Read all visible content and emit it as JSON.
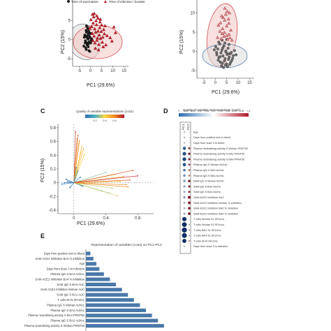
{
  "panels": {
    "a": {
      "legend": [
        "Time of vaccination",
        "Time of infection / booster"
      ],
      "xlabel": "PC1 (29.6%)",
      "ylabel": "PC2 (15%)",
      "xticks": [
        "-5",
        "0",
        "5",
        "10",
        "15"
      ],
      "yticks": [
        "5",
        "0",
        "-5"
      ]
    },
    "b": {
      "xlabel": "PC1 (29.6%)",
      "ylabel": "PC2 (15%)",
      "xticks": [
        "-5",
        "0",
        "5",
        "10",
        "15"
      ],
      "yticks": [
        "10",
        "5",
        "0",
        "-5"
      ]
    },
    "c": {
      "letter": "C",
      "legend_title": "Quality of variable representations (cos2)",
      "legend_ticks": [
        "0.2",
        "0.4",
        "0.6"
      ],
      "xlabel": "PC1 (29.6%)",
      "ylabel": "PC2 (15%)",
      "xticks": [
        "0",
        "0.4",
        "0.8"
      ],
      "yticks": [
        "0.8",
        "0.6",
        "0.4",
        "0.2",
        "0",
        "-0.2",
        "-0.4"
      ]
    },
    "d": {
      "letter": "D",
      "legend_title": "Quality of variable representations (cos2)",
      "legend_ticks": [
        "0",
        "0.04",
        "0.08",
        "0.12",
        "0.16",
        "0.2",
        "0.24",
        "0.28",
        "0.32",
        "0.36",
        "0.4"
      ],
      "columns": [
        "PC1",
        "PC2"
      ],
      "rows": [
        "Age",
        "Days from positive test to bleed",
        "Days from dose 3 to bleed",
        "Plasma neutralising activity S Wuhan PRNT50",
        "Plasma neutralising activity S BA2 PRNT50",
        "Plasma neutralising activity S BA4 PRNT50",
        "Plasma IgG S Wuhan AU/mL",
        "Plasma IgG S BA2 AU/mL",
        "Plasma IgG S BA4 AU/mL",
        "SAM IgG S Wuhan AU/mL",
        "SAM IgG S BA2 AU/mL",
        "SAM IgG S BA4 AU/mL",
        "SAM ACE2 Inhibition AUC",
        "SAM ACE2 Inhibition Wuhan % inhibition",
        "SAM ACE2 Inhibition BA2 % inhibition",
        "SAM ACE2 Inhibition BA4 % inhibition",
        "T cells Wuhan S1 SFU/mL",
        "T cells Wuhan S2 SFU/mL",
        "T cells BA1 S1 SFU/mL",
        "T cells BA4 S1 SFU/mL",
        "T cells M+N SFU/mL",
        "Days from dose 3 to infection"
      ]
    },
    "e": {
      "letter": "E",
      "title": "Representation of variables (cos2) on PC1-PC2"
    }
  },
  "colors": {
    "vacc_fill": "#1f1f1f",
    "inf_fill": "#cc1f2a",
    "ellipse_grey": "#dcdcdc",
    "ellipse_red": "#f2c6c4",
    "bar": "#4a78a8",
    "low": "#2c6fb5",
    "mid": "#ffd640",
    "high": "#b0172c"
  },
  "chart_data": [
    {
      "panel": "A",
      "type": "scatter",
      "title": "",
      "xlabel": "PC1 (29.6%)",
      "ylabel": "PC2 (15%)",
      "xlim": [
        -8,
        17
      ],
      "ylim": [
        -7,
        10
      ],
      "series": [
        {
          "name": "Time of vaccination",
          "x": [
            -2.6,
            -2.1,
            -1.8,
            -1.4,
            -0.9,
            -0.5,
            -2.3,
            -1.7,
            -1.1,
            -0.6,
            -0.2,
            0.3,
            -2.8,
            -2.0,
            -1.5,
            -1.0,
            -0.4,
            0.1,
            -1.9,
            -1.2,
            -0.7,
            -2.4,
            -1.6,
            -0.8,
            0.5,
            -3.0,
            -2.2,
            -1.3,
            -0.3,
            0.2,
            -1.0,
            -1.8
          ],
          "y": [
            1.2,
            0.8,
            1.9,
            0.4,
            1.5,
            0.9,
            -0.3,
            -0.8,
            0.1,
            -0.6,
            0.5,
            -0.2,
            0.6,
            2.4,
            -1.4,
            -1.9,
            1.7,
            -0.9,
            -2.6,
            2.8,
            -2.9,
            -0.9,
            1.0,
            2.2,
            0.2,
            -1.7,
            -2.1,
            3.2,
            -3.1,
            1.6,
            -1.2,
            3.6
          ]
        },
        {
          "name": "Time of infection / booster",
          "x": [
            0.5,
            1.2,
            1.9,
            2.7,
            3.4,
            4.1,
            0.8,
            1.6,
            2.3,
            3.1,
            3.9,
            4.8,
            5.5,
            6.2,
            1.1,
            2.0,
            2.9,
            3.7,
            4.5,
            5.3,
            6.9,
            0.2,
            1.4,
            2.5,
            3.3,
            4.2,
            5.0,
            5.9,
            7.4,
            8.8,
            10.5,
            1.7,
            2.8,
            4.4,
            6.5,
            -0.3,
            0.9,
            2.2,
            3.6,
            5.7,
            9.6,
            11.2
          ],
          "y": [
            3.4,
            4.3,
            2.8,
            3.9,
            2.2,
            3.1,
            1.6,
            0.9,
            1.9,
            0.4,
            1.2,
            2.1,
            0.6,
            1.5,
            -0.3,
            -0.9,
            -0.2,
            -1.3,
            0.3,
            -0.7,
            -1.4,
            5.2,
            5.9,
            4.9,
            5.6,
            4.6,
            3.8,
            2.6,
            1.0,
            0.5,
            3.3,
            6.8,
            6.2,
            5.3,
            3.6,
            2.9,
            6.6,
            -2.3,
            -2.7,
            -1.9,
            -0.4,
            1.8
          ]
        }
      ]
    },
    {
      "panel": "B",
      "type": "scatter",
      "title": "",
      "xlabel": "PC1 (29.6%)",
      "ylabel": "PC2 (15%)",
      "xlim": [
        -8,
        17
      ],
      "ylim": [
        -7,
        13
      ],
      "series": [
        {
          "x": [
            0.2,
            1.1,
            2.0,
            2.9,
            3.8,
            4.7,
            5.6,
            6.5,
            0.7,
            1.6,
            2.5,
            3.4,
            4.3,
            5.2,
            6.1,
            7.0,
            7.9,
            1.3,
            2.2,
            3.1,
            4.0,
            4.9,
            5.8,
            6.7,
            7.6,
            2.7,
            3.6,
            4.5,
            5.4,
            6.3,
            -0.4,
            0.6,
            1.5,
            3.0,
            4.2,
            5.0,
            6.0,
            8.4,
            9.1,
            2.1,
            3.3,
            4.6,
            5.7,
            7.2
          ],
          "y": [
            1.2,
            0.6,
            1.9,
            0.3,
            1.4,
            -0.2,
            0.8,
            -0.6,
            -0.9,
            -1.6,
            -0.4,
            -1.2,
            -1.9,
            -0.8,
            -1.5,
            -0.3,
            -1.1,
            -2.3,
            -2.8,
            -3.1,
            -2.5,
            -3.3,
            -2.1,
            -2.9,
            -1.8,
            -3.8,
            -4.2,
            -3.6,
            -4.0,
            -3.4,
            0.4,
            -0.3,
            2.4,
            2.9,
            2.2,
            3.1,
            1.8,
            0.2,
            -0.9,
            -1.4,
            0.9,
            0.1,
            -0.7,
            -2.4
          ]
        },
        {
          "x": [
            1.4,
            2.3,
            3.2,
            4.1,
            5.0,
            5.9,
            6.8,
            2.0,
            3.0,
            4.0,
            5.0,
            6.0,
            1.0,
            2.6,
            3.8,
            5.4,
            6.4,
            7.3,
            3.4,
            4.6,
            5.8,
            4.2,
            5.2,
            2.8,
            6.2
          ],
          "y": [
            6.8,
            7.4,
            5.9,
            8.1,
            6.6,
            7.3,
            5.5,
            5.2,
            4.6,
            4.9,
            4.1,
            4.4,
            3.6,
            3.3,
            3.9,
            3.1,
            3.5,
            2.9,
            8.8,
            9.6,
            8.4,
            11.2,
            10.4,
            9.2,
            10.0
          ]
        }
      ]
    },
    {
      "panel": "C",
      "type": "scatter",
      "title": "",
      "xlabel": "PC1 (29.6%)",
      "ylabel": "PC2 (15%)",
      "xlim": [
        -0.2,
        1.0
      ],
      "ylim": [
        -0.45,
        0.85
      ],
      "series": [
        {
          "name": "loadings",
          "x": [
            0.02,
            0.05,
            0.04,
            0.07,
            0.06,
            0.1,
            0.12,
            0.09,
            0.13,
            0.05,
            0.03,
            0.08,
            -0.08,
            -0.12,
            -0.15,
            -0.1,
            -0.05,
            0.11,
            0.4,
            0.52,
            0.62,
            0.7,
            0.58,
            0.66,
            0.48,
            0.35,
            0.74,
            0.8,
            0.44,
            0.55,
            0.68
          ],
          "y": [
            0.74,
            0.69,
            0.64,
            0.61,
            0.57,
            0.53,
            0.49,
            0.45,
            0.41,
            0.17,
            0.22,
            0.08,
            0.02,
            0.0,
            -0.02,
            0.05,
            -0.07,
            -0.05,
            0.15,
            0.12,
            0.09,
            0.04,
            0.02,
            -0.03,
            -0.08,
            -0.12,
            0.18,
            0.1,
            -0.15,
            -0.19,
            -0.06
          ],
          "cos2": [
            0.6,
            0.55,
            0.52,
            0.5,
            0.45,
            0.4,
            0.42,
            0.38,
            0.36,
            0.15,
            0.12,
            0.1,
            0.05,
            0.06,
            0.07,
            0.05,
            0.04,
            0.05,
            0.25,
            0.35,
            0.45,
            0.55,
            0.4,
            0.48,
            0.3,
            0.2,
            0.58,
            0.62,
            0.22,
            0.32,
            0.5
          ]
        }
      ]
    },
    {
      "panel": "D",
      "type": "heatmap",
      "title": "",
      "columns": [
        "PC1",
        "PC2"
      ],
      "rows": [
        "Age",
        "Days from positive test to bleed",
        "Days from dose 3 to bleed",
        "Plasma neutralising activity S Wuhan PRNT50",
        "Plasma neutralising activity S BA2 PRNT50",
        "Plasma neutralising activity S BA4 PRNT50",
        "Plasma IgG S Wuhan AU/mL",
        "Plasma IgG S BA2 AU/mL",
        "Plasma IgG S BA4 AU/mL",
        "SAM IgG S Wuhan AU/mL",
        "SAM IgG S BA2 AU/mL",
        "SAM IgG S BA4 AU/mL",
        "SAM ACE2 Inhibition AUC",
        "SAM ACE2 Inhibition Wuhan % inhibition",
        "SAM ACE2 Inhibition BA2 % inhibition",
        "SAM ACE2 Inhibition BA4 % inhibition",
        "T cells Wuhan S1 SFU/mL",
        "T cells Wuhan S2 SFU/mL",
        "T cells BA1 S1 SFU/mL",
        "T cells BA4 S1 SFU/mL",
        "T cells M+N SFU/mL",
        "Days from dose 3 to infection"
      ],
      "values": [
        [
          0.01,
          0.0
        ],
        [
          0.02,
          0.0
        ],
        [
          0.01,
          0.0
        ],
        [
          0.18,
          0.08
        ],
        [
          0.22,
          0.1
        ],
        [
          0.24,
          0.09
        ],
        [
          0.2,
          0.07
        ],
        [
          0.12,
          0.05
        ],
        [
          0.1,
          0.04
        ],
        [
          0.09,
          0.11
        ],
        [
          0.07,
          0.09
        ],
        [
          0.06,
          0.08
        ],
        [
          0.08,
          0.16
        ],
        [
          0.05,
          0.14
        ],
        [
          0.04,
          0.12
        ],
        [
          0.06,
          0.13
        ],
        [
          0.3,
          0.0
        ],
        [
          0.34,
          0.01
        ],
        [
          0.38,
          0.02
        ],
        [
          0.36,
          0.01
        ],
        [
          0.28,
          0.02
        ],
        [
          0.01,
          0.0
        ]
      ],
      "value_range": [
        0,
        0.4
      ]
    },
    {
      "panel": "E",
      "type": "bar",
      "title": "Representation of variables (cos2) on PC1-PC2",
      "xlabel": "",
      "ylabel": "",
      "categories": [
        "Days from positive test to bleed",
        "SAM ACE2 Inhibition BA2 % inhibition",
        "Age",
        "Days from dose 3 to infection",
        "Plasma IgG S BA4 AU/mL",
        "SAM ACE2 Inhibition BA4 % inhibition",
        "SAM IgG S BA4 AUC",
        "SAM ACE2 Inhibition Wuhan AUC",
        "SAM IgG S BA1 AUC",
        "T cells M+N SFU/mL",
        "Plasma IgG S Wuhan AU/mL",
        "Plasma IgG S BA4 AU/mL",
        "Plasma neutralising activity S BA4 PRNT50",
        "Plasma IgG S BA2 AU/mL",
        "Plasma neutralising activity S Wuhan PRNT50"
      ],
      "values": [
        0.03,
        0.05,
        0.07,
        0.09,
        0.12,
        0.16,
        0.2,
        0.24,
        0.28,
        0.32,
        0.36,
        0.4,
        0.44,
        0.48,
        0.52
      ],
      "xlim": [
        0,
        0.6
      ]
    }
  ]
}
